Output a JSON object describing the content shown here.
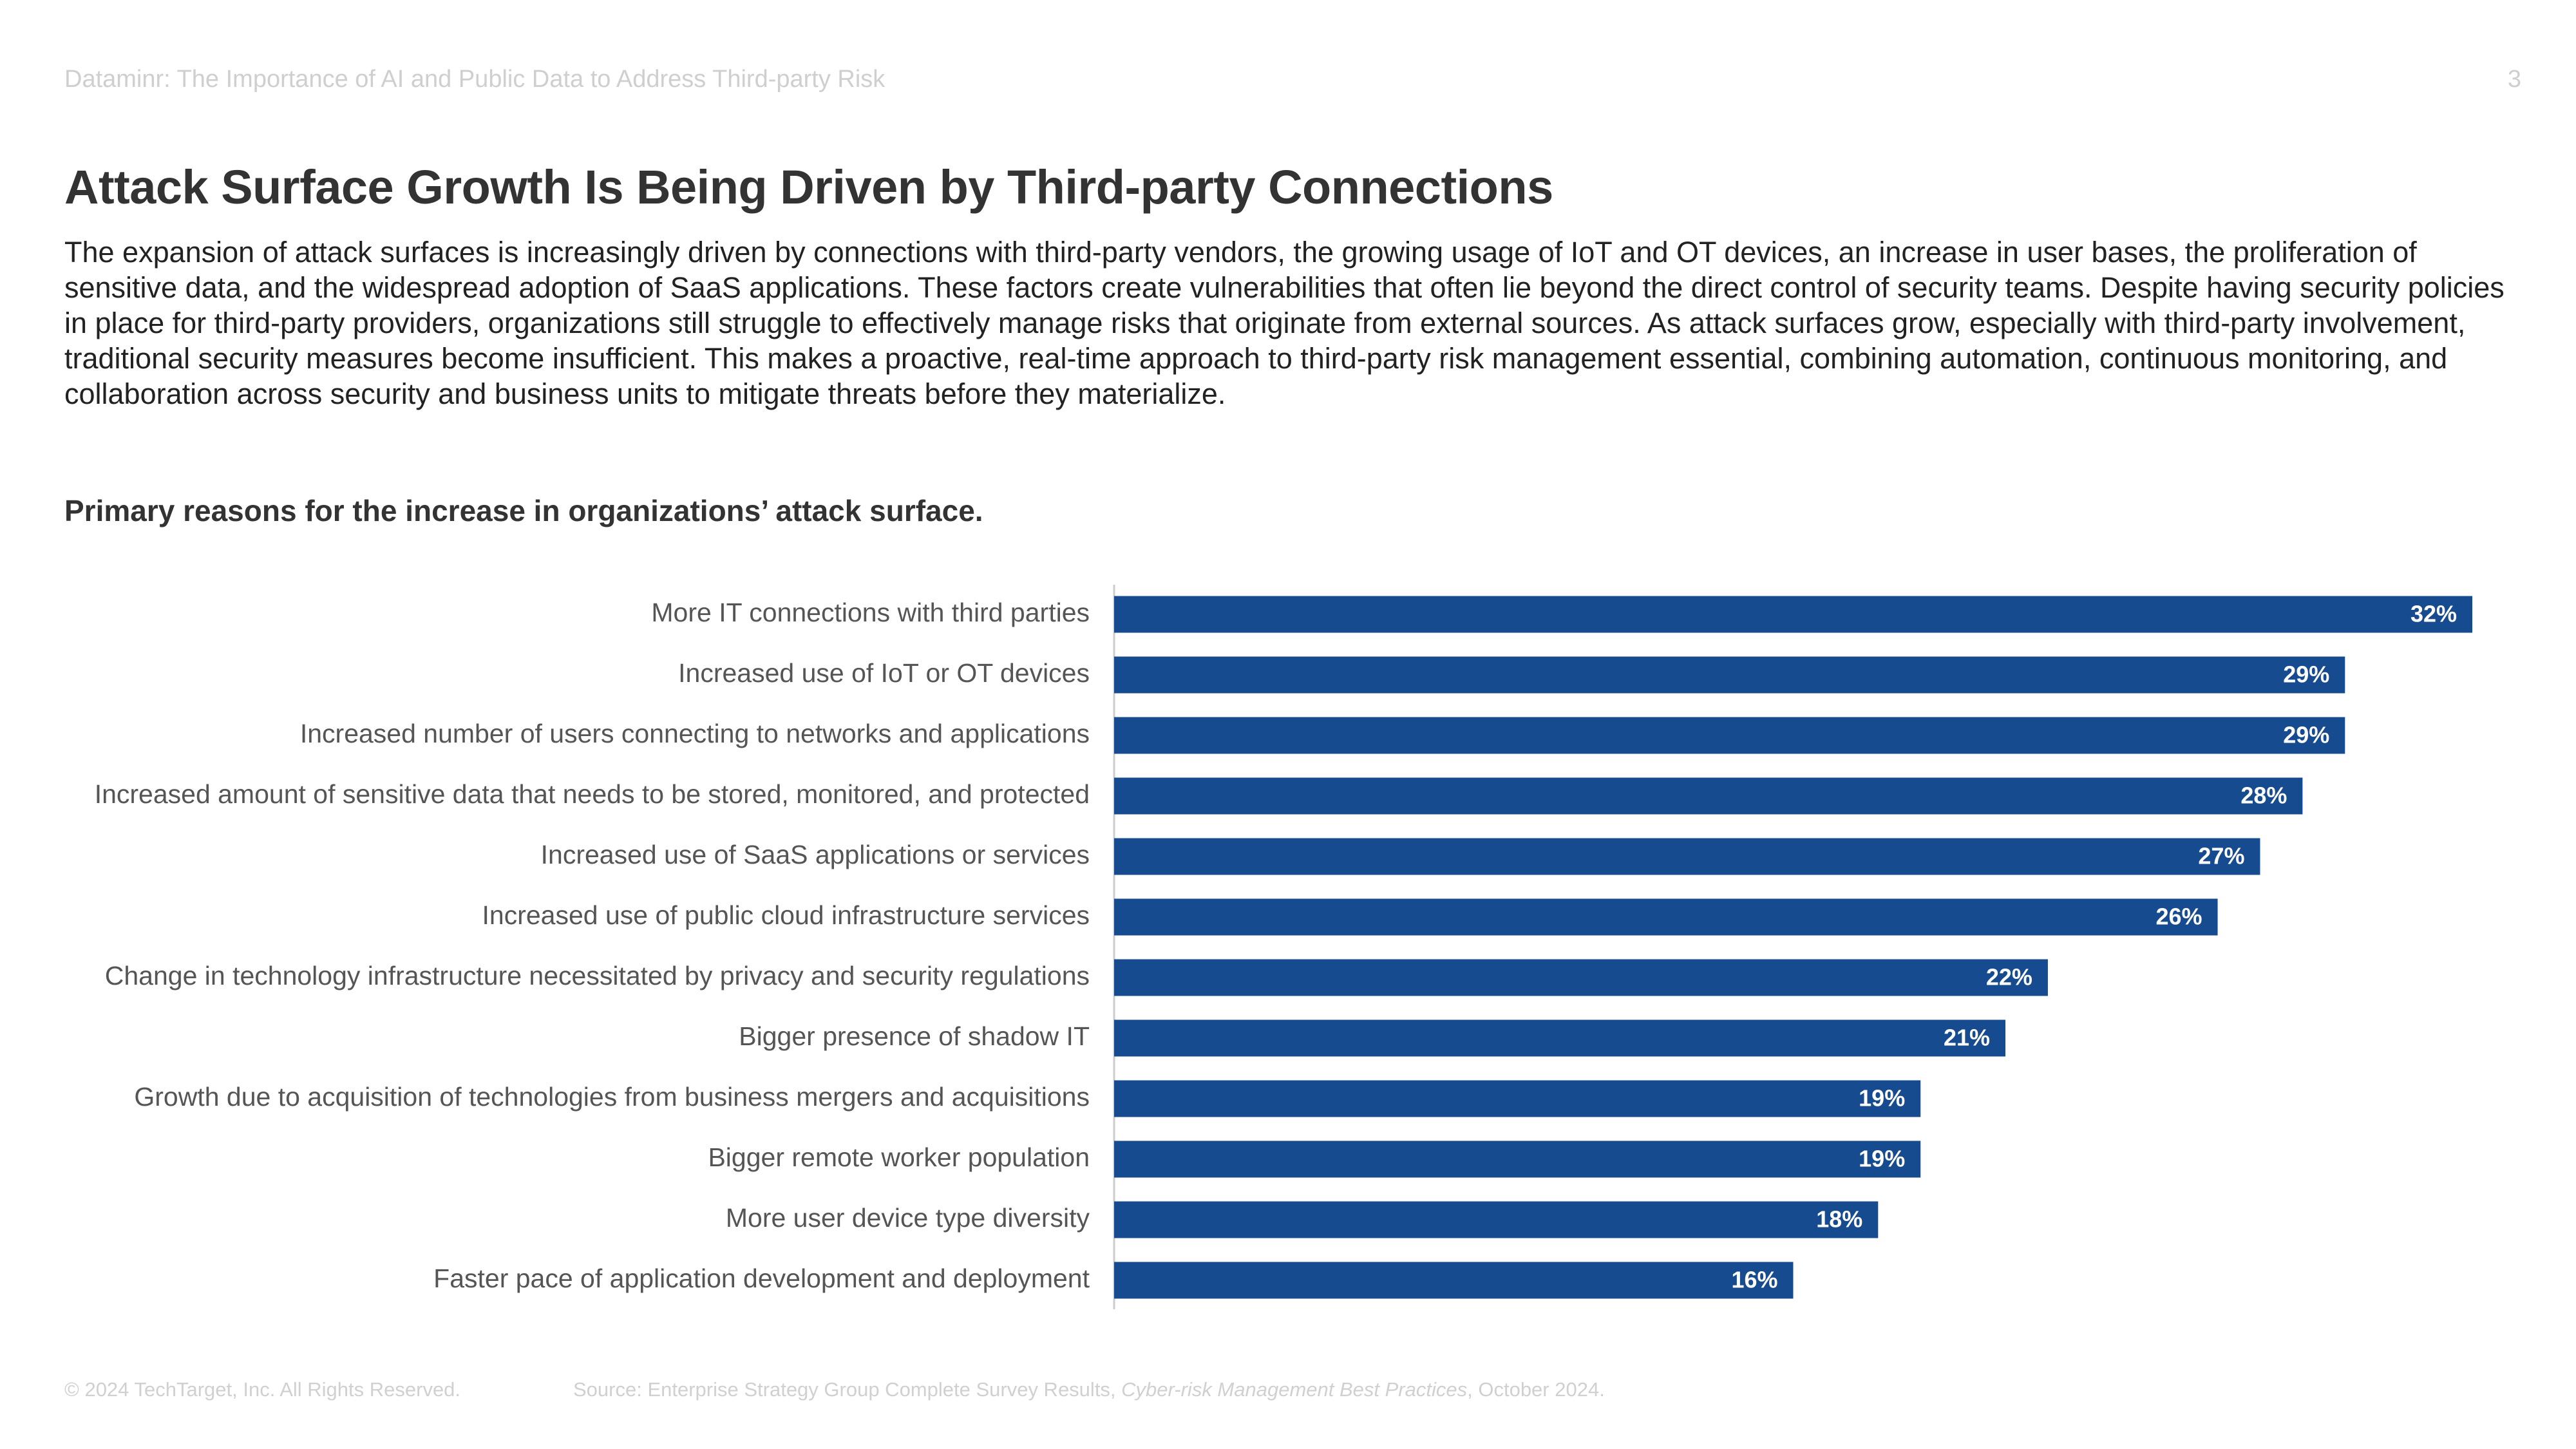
{
  "header": {
    "running_title": "Dataminr: The Importance of AI and Public Data to Address Third-party Risk",
    "page_number": "3"
  },
  "title": "Attack Surface Growth Is Being Driven by Third-party Connections",
  "body": "The expansion of attack surfaces is increasingly driven by connections with third-party vendors, the growing usage of IoT and OT devices, an increase in user bases, the proliferation of sensitive data, and the widespread adoption of SaaS applications. These factors create vulnerabilities that often lie beyond the direct control of security teams. Despite having security policies in place for third-party providers, organizations still struggle to effectively manage risks that originate from external sources. As attack surfaces grow, especially with third-party involvement, traditional security measures become insufficient. This makes a proactive, real-time approach to third-party risk management essential, combining automation, continuous monitoring, and collaboration across security and business units to mitigate threats before they materialize.",
  "chart_data": {
    "type": "barh",
    "title": "Primary reasons for the increase in organizations’ attack surface.",
    "categories": [
      "More IT connections with third parties",
      "Increased use of IoT or OT devices",
      "Increased number of users connecting to networks and applications",
      "Increased amount of sensitive data that needs to be stored, monitored, and protected",
      "Increased use of SaaS applications or services",
      "Increased use of public cloud infrastructure services",
      "Change in technology infrastructure necessitated by privacy and security regulations",
      "Bigger presence of shadow IT",
      "Growth due to acquisition of technologies from business mergers and acquisitions",
      "Bigger remote worker population",
      "More user device type diversity",
      "Faster pace of application development and deployment"
    ],
    "values": [
      32,
      29,
      29,
      28,
      27,
      26,
      22,
      21,
      19,
      19,
      18,
      16
    ],
    "value_labels": [
      "32%",
      "29%",
      "29%",
      "28%",
      "27%",
      "26%",
      "22%",
      "21%",
      "19%",
      "19%",
      "18%",
      "16%"
    ],
    "color": "#164b8f"
  },
  "footer": {
    "copyright": "© 2024 TechTarget, Inc. All Rights Reserved.",
    "source": {
      "prefix": "Source: Enterprise Strategy Group Complete Survey Results, ",
      "italic": "Cyber-risk Management Best Practices",
      "suffix": ", October 2024."
    }
  }
}
